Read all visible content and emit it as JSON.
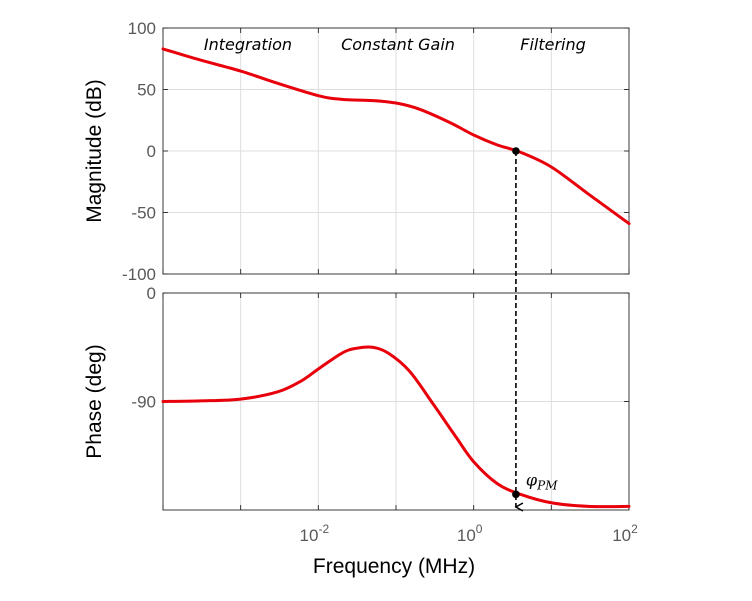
{
  "chart_data": [
    {
      "type": "line",
      "panel": "magnitude",
      "ylabel": "Magnitude (dB)",
      "xscale": "log",
      "xlim": [
        0.0001,
        100
      ],
      "ylim": [
        -100,
        100
      ],
      "yticks": [
        "100",
        "50",
        "0",
        "-50",
        "-100"
      ],
      "grid": true,
      "series": [
        {
          "color": "#e8000b",
          "x": [
            0.0001,
            0.0003,
            0.001,
            0.003,
            0.01,
            0.02,
            0.05,
            0.1,
            0.2,
            0.5,
            1,
            2,
            4,
            10,
            30,
            100
          ],
          "y": [
            83,
            74,
            65,
            55,
            45,
            42,
            41,
            39,
            34,
            23,
            13,
            5,
            -1,
            -13,
            -35,
            -59
          ]
        }
      ],
      "annotations": [
        "Integration",
        "Constant Gain",
        "Filtering"
      ],
      "crossover_marker": {
        "x": 3.5,
        "y": 0
      }
    },
    {
      "type": "line",
      "panel": "phase",
      "ylabel": "Phase (deg)",
      "xlabel": "Frequency  (MHz)",
      "xscale": "log",
      "xlim": [
        0.0001,
        100
      ],
      "ylim": [
        -180,
        0
      ],
      "yticks": [
        "0",
        "-90"
      ],
      "xticks": [
        {
          "base": "10",
          "exp": "-2"
        },
        {
          "base": "10",
          "exp": "0"
        },
        {
          "base": "10",
          "exp": "2"
        }
      ],
      "grid": true,
      "series": [
        {
          "color": "#e8000b",
          "x": [
            0.0001,
            0.0003,
            0.001,
            0.003,
            0.006,
            0.01,
            0.02,
            0.03,
            0.05,
            0.08,
            0.15,
            0.3,
            0.6,
            1,
            2,
            4,
            10,
            30,
            100
          ],
          "y": [
            -90,
            -89.5,
            -88,
            -82,
            -73,
            -63,
            -50,
            -46,
            -45,
            -50,
            -65,
            -92,
            -120,
            -140,
            -158,
            -167,
            -174,
            -177,
            -177
          ]
        }
      ],
      "annotations": [
        "φPM"
      ],
      "phase_margin_marker": {
        "x": 3.5,
        "y": -167
      }
    }
  ]
}
